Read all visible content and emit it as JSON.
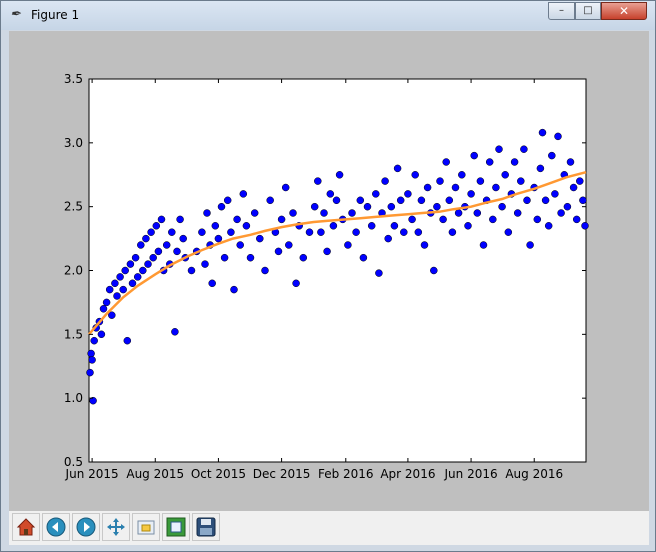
{
  "window": {
    "title": "Figure 1",
    "minimize_symbol": "–",
    "maximize_symbol": "□",
    "close_symbol": "✕"
  },
  "colors": {
    "points": "#0000ff",
    "trend": "#ff9933",
    "canvas_bg": "#bfbfbf",
    "axes_bg": "#ffffff"
  },
  "toolbar": {
    "icons": [
      "home-icon",
      "back-icon",
      "forward-icon",
      "pan-icon",
      "zoom-icon",
      "subplots-icon",
      "save-icon"
    ]
  },
  "chart_data": {
    "type": "scatter",
    "title": "",
    "xlabel": "",
    "ylabel": "",
    "xlim": [
      "2015-05-29",
      "2016-09-20"
    ],
    "ylim": [
      0.5,
      3.5
    ],
    "yticks": [
      0.5,
      1.0,
      1.5,
      2.0,
      2.5,
      3.0,
      3.5
    ],
    "xticks": [
      {
        "date": "2015-06-01",
        "label": "Jun 2015"
      },
      {
        "date": "2015-08-01",
        "label": "Aug 2015"
      },
      {
        "date": "2015-10-01",
        "label": "Oct 2015"
      },
      {
        "date": "2015-12-01",
        "label": "Dec 2015"
      },
      {
        "date": "2016-02-01",
        "label": "Feb 2016"
      },
      {
        "date": "2016-04-01",
        "label": "Apr 2016"
      },
      {
        "date": "2016-06-01",
        "label": "Jun 2016"
      },
      {
        "date": "2016-08-01",
        "label": "Aug 2016"
      }
    ],
    "grid": false,
    "series": [
      {
        "kind": "scatter",
        "points": [
          [
            "2015-05-30",
            1.2
          ],
          [
            "2015-05-31",
            1.35
          ],
          [
            "2015-06-01",
            1.3
          ],
          [
            "2015-06-02",
            0.98
          ],
          [
            "2015-06-03",
            1.45
          ],
          [
            "2015-06-05",
            1.55
          ],
          [
            "2015-06-08",
            1.6
          ],
          [
            "2015-06-10",
            1.5
          ],
          [
            "2015-06-12",
            1.7
          ],
          [
            "2015-06-15",
            1.75
          ],
          [
            "2015-06-18",
            1.85
          ],
          [
            "2015-06-20",
            1.65
          ],
          [
            "2015-06-23",
            1.9
          ],
          [
            "2015-06-25",
            1.8
          ],
          [
            "2015-06-28",
            1.95
          ],
          [
            "2015-07-01",
            1.85
          ],
          [
            "2015-07-03",
            2.0
          ],
          [
            "2015-07-05",
            1.45
          ],
          [
            "2015-07-08",
            2.05
          ],
          [
            "2015-07-10",
            1.9
          ],
          [
            "2015-07-13",
            2.1
          ],
          [
            "2015-07-15",
            1.95
          ],
          [
            "2015-07-18",
            2.2
          ],
          [
            "2015-07-20",
            2.0
          ],
          [
            "2015-07-23",
            2.25
          ],
          [
            "2015-07-25",
            2.05
          ],
          [
            "2015-07-28",
            2.3
          ],
          [
            "2015-07-30",
            2.1
          ],
          [
            "2015-08-02",
            2.35
          ],
          [
            "2015-08-04",
            2.15
          ],
          [
            "2015-08-07",
            2.4
          ],
          [
            "2015-08-09",
            2.0
          ],
          [
            "2015-08-12",
            2.2
          ],
          [
            "2015-08-15",
            2.05
          ],
          [
            "2015-08-17",
            2.3
          ],
          [
            "2015-08-20",
            1.52
          ],
          [
            "2015-08-22",
            2.15
          ],
          [
            "2015-08-25",
            2.4
          ],
          [
            "2015-08-28",
            2.25
          ],
          [
            "2015-08-30",
            2.1
          ],
          [
            "2015-09-05",
            2.0
          ],
          [
            "2015-09-10",
            2.15
          ],
          [
            "2015-09-15",
            2.3
          ],
          [
            "2015-09-18",
            2.05
          ],
          [
            "2015-09-20",
            2.45
          ],
          [
            "2015-09-23",
            2.2
          ],
          [
            "2015-09-25",
            1.9
          ],
          [
            "2015-09-28",
            2.35
          ],
          [
            "2015-10-01",
            2.25
          ],
          [
            "2015-10-04",
            2.5
          ],
          [
            "2015-10-07",
            2.1
          ],
          [
            "2015-10-10",
            2.55
          ],
          [
            "2015-10-13",
            2.3
          ],
          [
            "2015-10-16",
            1.85
          ],
          [
            "2015-10-19",
            2.4
          ],
          [
            "2015-10-22",
            2.2
          ],
          [
            "2015-10-25",
            2.6
          ],
          [
            "2015-10-28",
            2.35
          ],
          [
            "2015-11-01",
            2.1
          ],
          [
            "2015-11-05",
            2.45
          ],
          [
            "2015-11-10",
            2.25
          ],
          [
            "2015-11-15",
            2.0
          ],
          [
            "2015-11-20",
            2.55
          ],
          [
            "2015-11-25",
            2.3
          ],
          [
            "2015-11-28",
            2.15
          ],
          [
            "2015-12-01",
            2.4
          ],
          [
            "2015-12-05",
            2.65
          ],
          [
            "2015-12-08",
            2.2
          ],
          [
            "2015-12-12",
            2.45
          ],
          [
            "2015-12-15",
            1.9
          ],
          [
            "2015-12-18",
            2.35
          ],
          [
            "2015-12-22",
            2.1
          ],
          [
            "2015-12-28",
            2.3
          ],
          [
            "2016-01-02",
            2.5
          ],
          [
            "2016-01-05",
            2.7
          ],
          [
            "2016-01-08",
            2.3
          ],
          [
            "2016-01-11",
            2.45
          ],
          [
            "2016-01-14",
            2.15
          ],
          [
            "2016-01-17",
            2.6
          ],
          [
            "2016-01-20",
            2.35
          ],
          [
            "2016-01-23",
            2.55
          ],
          [
            "2016-01-26",
            2.75
          ],
          [
            "2016-01-29",
            2.4
          ],
          [
            "2016-02-03",
            2.2
          ],
          [
            "2016-02-07",
            2.45
          ],
          [
            "2016-02-11",
            2.3
          ],
          [
            "2016-02-15",
            2.55
          ],
          [
            "2016-02-18",
            2.1
          ],
          [
            "2016-02-22",
            2.5
          ],
          [
            "2016-02-26",
            2.35
          ],
          [
            "2016-03-01",
            2.6
          ],
          [
            "2016-03-04",
            1.98
          ],
          [
            "2016-03-07",
            2.45
          ],
          [
            "2016-03-10",
            2.7
          ],
          [
            "2016-03-13",
            2.25
          ],
          [
            "2016-03-16",
            2.5
          ],
          [
            "2016-03-19",
            2.35
          ],
          [
            "2016-03-22",
            2.8
          ],
          [
            "2016-03-25",
            2.55
          ],
          [
            "2016-03-28",
            2.3
          ],
          [
            "2016-04-01",
            2.6
          ],
          [
            "2016-04-05",
            2.4
          ],
          [
            "2016-04-08",
            2.75
          ],
          [
            "2016-04-11",
            2.3
          ],
          [
            "2016-04-14",
            2.55
          ],
          [
            "2016-04-17",
            2.2
          ],
          [
            "2016-04-20",
            2.65
          ],
          [
            "2016-04-23",
            2.45
          ],
          [
            "2016-04-26",
            2.0
          ],
          [
            "2016-04-29",
            2.5
          ],
          [
            "2016-05-02",
            2.7
          ],
          [
            "2016-05-05",
            2.4
          ],
          [
            "2016-05-08",
            2.85
          ],
          [
            "2016-05-11",
            2.55
          ],
          [
            "2016-05-14",
            2.3
          ],
          [
            "2016-05-17",
            2.65
          ],
          [
            "2016-05-20",
            2.45
          ],
          [
            "2016-05-23",
            2.75
          ],
          [
            "2016-05-26",
            2.5
          ],
          [
            "2016-05-29",
            2.35
          ],
          [
            "2016-06-01",
            2.6
          ],
          [
            "2016-06-04",
            2.9
          ],
          [
            "2016-06-07",
            2.45
          ],
          [
            "2016-06-10",
            2.7
          ],
          [
            "2016-06-13",
            2.2
          ],
          [
            "2016-06-16",
            2.55
          ],
          [
            "2016-06-19",
            2.85
          ],
          [
            "2016-06-22",
            2.4
          ],
          [
            "2016-06-25",
            2.65
          ],
          [
            "2016-06-28",
            2.95
          ],
          [
            "2016-07-01",
            2.5
          ],
          [
            "2016-07-04",
            2.75
          ],
          [
            "2016-07-07",
            2.3
          ],
          [
            "2016-07-10",
            2.6
          ],
          [
            "2016-07-13",
            2.85
          ],
          [
            "2016-07-16",
            2.45
          ],
          [
            "2016-07-19",
            2.7
          ],
          [
            "2016-07-22",
            2.95
          ],
          [
            "2016-07-25",
            2.55
          ],
          [
            "2016-07-28",
            2.2
          ],
          [
            "2016-08-01",
            2.65
          ],
          [
            "2016-08-04",
            2.4
          ],
          [
            "2016-08-07",
            2.8
          ],
          [
            "2016-08-09",
            3.08
          ],
          [
            "2016-08-12",
            2.55
          ],
          [
            "2016-08-15",
            2.35
          ],
          [
            "2016-08-18",
            2.9
          ],
          [
            "2016-08-21",
            2.6
          ],
          [
            "2016-08-24",
            3.05
          ],
          [
            "2016-08-27",
            2.45
          ],
          [
            "2016-08-30",
            2.75
          ],
          [
            "2016-09-02",
            2.5
          ],
          [
            "2016-09-05",
            2.85
          ],
          [
            "2016-09-08",
            2.65
          ],
          [
            "2016-09-11",
            2.4
          ],
          [
            "2016-09-14",
            2.7
          ],
          [
            "2016-09-17",
            2.55
          ],
          [
            "2016-09-19",
            2.35
          ]
        ]
      },
      {
        "kind": "line",
        "points": [
          [
            "2015-05-29",
            1.5
          ],
          [
            "2015-06-15",
            1.66
          ],
          [
            "2015-07-01",
            1.79
          ],
          [
            "2015-07-15",
            1.88
          ],
          [
            "2015-08-01",
            1.97
          ],
          [
            "2015-08-15",
            2.04
          ],
          [
            "2015-09-01",
            2.11
          ],
          [
            "2015-09-15",
            2.16
          ],
          [
            "2015-10-01",
            2.21
          ],
          [
            "2015-10-15",
            2.25
          ],
          [
            "2015-11-01",
            2.28
          ],
          [
            "2015-11-15",
            2.31
          ],
          [
            "2015-12-01",
            2.34
          ],
          [
            "2015-12-15",
            2.36
          ],
          [
            "2016-01-01",
            2.38
          ],
          [
            "2016-01-15",
            2.39
          ],
          [
            "2016-02-01",
            2.4
          ],
          [
            "2016-02-15",
            2.41
          ],
          [
            "2016-03-01",
            2.42
          ],
          [
            "2016-03-15",
            2.43
          ],
          [
            "2016-04-01",
            2.44
          ],
          [
            "2016-04-15",
            2.45
          ],
          [
            "2016-05-01",
            2.46
          ],
          [
            "2016-05-15",
            2.48
          ],
          [
            "2016-06-01",
            2.5
          ],
          [
            "2016-06-15",
            2.53
          ],
          [
            "2016-07-01",
            2.56
          ],
          [
            "2016-07-15",
            2.6
          ],
          [
            "2016-08-01",
            2.64
          ],
          [
            "2016-08-15",
            2.68
          ],
          [
            "2016-09-01",
            2.73
          ],
          [
            "2016-09-20",
            2.77
          ]
        ]
      }
    ]
  }
}
